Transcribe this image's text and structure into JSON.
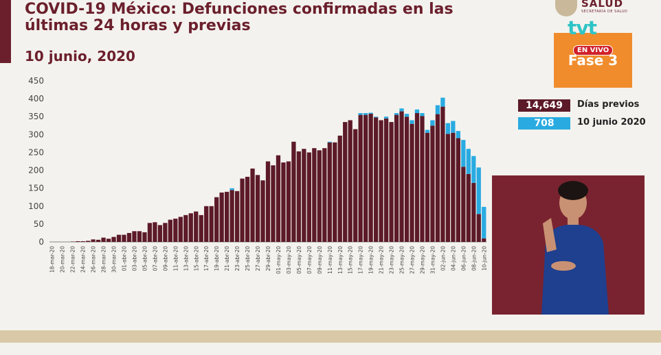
{
  "header": {
    "title": "COVID-19 México: Defunciones confirmadas en las últimas 24 horas y previas",
    "date": "10 junio, 2020"
  },
  "branding": {
    "salud": "SALUD",
    "salud_sub": "SECRETARÍA DE SALUD",
    "channel": "tvt",
    "live": "EN VIVO",
    "phase": "Fase 3"
  },
  "legend": {
    "prev_value": "14,649",
    "prev_label": "Días previos",
    "today_value": "708",
    "today_label": "10 junio 2020"
  },
  "colors": {
    "prev": "#5c1a28",
    "today": "#29abe2",
    "brand": "#6b1f2c",
    "phase": "#f08c2c"
  },
  "chart_data": {
    "type": "bar",
    "stacked": true,
    "ylim": [
      0,
      450
    ],
    "yticks": [
      0,
      50,
      100,
      150,
      200,
      250,
      300,
      350,
      400,
      450
    ],
    "grid": false,
    "legend_position": "right",
    "categories": [
      "18-mar-20",
      "19-mar-20",
      "20-mar-20",
      "21-mar-20",
      "22-mar-20",
      "23-mar-20",
      "24-mar-20",
      "25-mar-20",
      "26-mar-20",
      "27-mar-20",
      "28-mar-20",
      "29-mar-20",
      "30-mar-20",
      "31-mar-20",
      "01-abr-20",
      "02-abr-20",
      "03-abr-20",
      "04-abr-20",
      "05-abr-20",
      "06-abr-20",
      "07-abr-20",
      "08-abr-20",
      "09-abr-20",
      "10-abr-20",
      "11-abr-20",
      "12-abr-20",
      "13-abr-20",
      "14-abr-20",
      "15-abr-20",
      "16-abr-20",
      "17-abr-20",
      "18-abr-20",
      "19-abr-20",
      "20-abr-20",
      "21-abr-20",
      "22-abr-20",
      "23-abr-20",
      "24-abr-20",
      "25-abr-20",
      "26-abr-20",
      "27-abr-20",
      "28-abr-20",
      "29-abr-20",
      "30-abr-20",
      "01-may-20",
      "02-may-20",
      "03-may-20",
      "04-may-20",
      "05-may-20",
      "06-may-20",
      "07-may-20",
      "08-may-20",
      "09-may-20",
      "10-may-20",
      "11-may-20",
      "12-may-20",
      "13-may-20",
      "14-may-20",
      "15-may-20",
      "16-may-20",
      "17-may-20",
      "18-may-20",
      "19-may-20",
      "20-may-20",
      "21-may-20",
      "22-may-20",
      "23-may-20",
      "24-may-20",
      "25-may-20",
      "26-may-20",
      "27-may-20",
      "28-may-20",
      "29-may-20",
      "30-may-20",
      "31-may-20",
      "01-jun-20",
      "02-jun-20",
      "03-jun-20",
      "04-jun-20",
      "05-jun-20",
      "06-jun-20",
      "07-jun-20",
      "08-jun-20",
      "09-jun-20",
      "10-jun-20"
    ],
    "xtick_labels": [
      "18-mar-20",
      "20-mar-20",
      "22-mar-20",
      "24-mar-20",
      "26-mar-20",
      "28-mar-20",
      "30-mar-20",
      "01-abr-20",
      "03-abr-20",
      "05-abr-20",
      "07-abr-20",
      "09-abr-20",
      "11-abr-20",
      "13-abr-20",
      "15-abr-20",
      "17-abr-20",
      "19-abr-20",
      "21-abr-20",
      "23-abr-20",
      "25-abr-20",
      "27-abr-20",
      "29-abr-20",
      "01-may-20",
      "03-may-20",
      "05-may-20",
      "07-may-20",
      "09-may-20",
      "11-may-20",
      "13-may-20",
      "15-may-20",
      "17-may-20",
      "19-may-20",
      "21-may-20",
      "23-may-20",
      "25-may-20",
      "27-may-20",
      "29-may-20",
      "31-may-20",
      "02-jun-20",
      "04-jun-20",
      "06-jun-20",
      "08-jun-20",
      "10-jun-20"
    ],
    "series": [
      {
        "name": "Días previos",
        "values": [
          0,
          0,
          0,
          0,
          1,
          2,
          2,
          3,
          7,
          6,
          12,
          9,
          14,
          20,
          20,
          25,
          30,
          30,
          27,
          53,
          55,
          47,
          53,
          62,
          65,
          70,
          75,
          80,
          85,
          75,
          100,
          100,
          125,
          138,
          140,
          145,
          142,
          177,
          182,
          205,
          187,
          172,
          225,
          214,
          242,
          222,
          225,
          280,
          253,
          260,
          250,
          262,
          256,
          262,
          278,
          278,
          297,
          335,
          340,
          315,
          355,
          355,
          358,
          348,
          340,
          345,
          335,
          355,
          365,
          350,
          330,
          360,
          352,
          305,
          325,
          357,
          378,
          302,
          305,
          290,
          210,
          190,
          165,
          78,
          10
        ]
      },
      {
        "name": "10 junio 2020",
        "values": [
          0,
          0,
          0,
          0,
          0,
          0,
          0,
          0,
          0,
          0,
          0,
          0,
          0,
          0,
          0,
          0,
          0,
          0,
          0,
          0,
          0,
          0,
          0,
          0,
          0,
          0,
          0,
          0,
          0,
          0,
          0,
          0,
          0,
          0,
          0,
          5,
          0,
          0,
          0,
          0,
          0,
          0,
          0,
          0,
          0,
          0,
          0,
          0,
          0,
          0,
          0,
          0,
          0,
          0,
          2,
          0,
          0,
          0,
          0,
          0,
          5,
          5,
          3,
          2,
          0,
          5,
          0,
          5,
          8,
          8,
          10,
          10,
          8,
          8,
          15,
          25,
          25,
          30,
          33,
          20,
          75,
          70,
          75,
          130,
          88
        ]
      }
    ]
  }
}
